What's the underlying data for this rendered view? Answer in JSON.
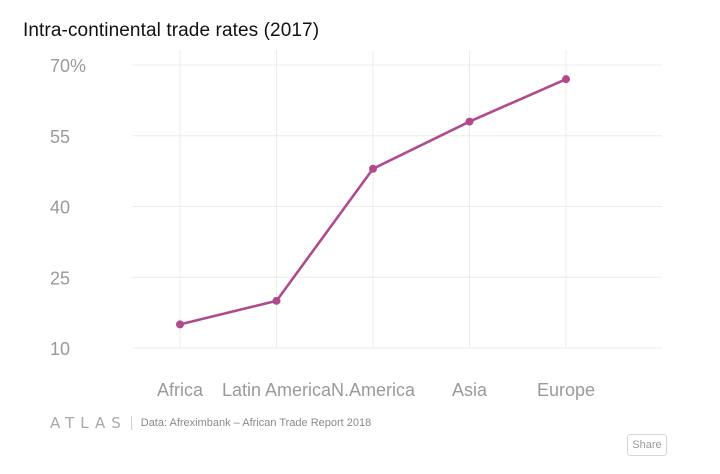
{
  "chart_data": {
    "type": "line",
    "title": "Intra-continental trade rates (2017)",
    "categories": [
      "Africa",
      "Latin America",
      "N.America",
      "Asia",
      "Europe"
    ],
    "series": [
      {
        "name": "Intra-continental trade rate",
        "values": [
          15,
          20,
          48,
          58,
          67
        ]
      }
    ],
    "yticks": [
      "10",
      "25",
      "40",
      "55",
      "70%"
    ],
    "ytick_values": [
      10,
      25,
      40,
      55,
      70
    ],
    "ylim": [
      10,
      70
    ],
    "xlabel": "",
    "ylabel": "",
    "grid": true,
    "line_color": "#b04a8c"
  },
  "footer": {
    "brand": "ATLAS",
    "source": "Data:  Afreximbank – African Trade Report 2018"
  },
  "share_label": "Share"
}
